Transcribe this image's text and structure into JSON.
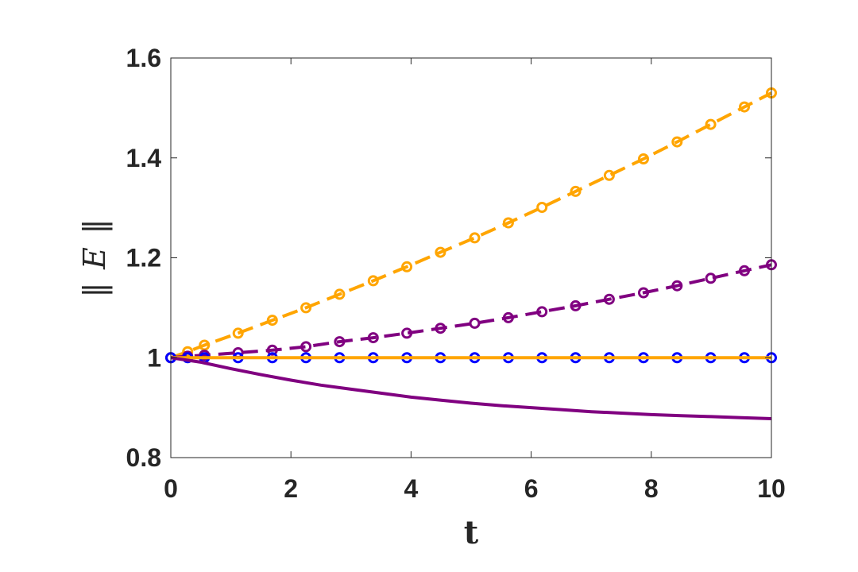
{
  "chart_data": {
    "type": "line",
    "xlabel": "t",
    "ylabel": "E",
    "ylabel_full": "||E||",
    "xlim": [
      0,
      10
    ],
    "ylim": [
      0.8,
      1.6
    ],
    "xticks": [
      0,
      2,
      4,
      6,
      8,
      10
    ],
    "xtick_labels": [
      "0",
      "2",
      "4",
      "6",
      "8",
      "10"
    ],
    "yticks": [
      0.8,
      1.0,
      1.2,
      1.4,
      1.6
    ],
    "ytick_labels": [
      "0.8",
      "1",
      "1.2",
      "1.4",
      "1.6"
    ],
    "grid": false,
    "series": [
      {
        "color": "#FFA500",
        "style": "dashed",
        "marker": "circle",
        "x": [
          0.0,
          0.28,
          0.56,
          1.12,
          1.69,
          2.25,
          2.81,
          3.37,
          3.93,
          4.49,
          5.06,
          5.62,
          6.18,
          6.74,
          7.3,
          7.87,
          8.43,
          8.99,
          9.55,
          10.0
        ],
        "y": [
          1.0,
          1.012,
          1.025,
          1.049,
          1.075,
          1.1,
          1.127,
          1.154,
          1.182,
          1.211,
          1.24,
          1.27,
          1.301,
          1.333,
          1.365,
          1.398,
          1.432,
          1.467,
          1.502,
          1.53
        ]
      },
      {
        "color": "#800080",
        "style": "dashed",
        "marker": "circle",
        "x": [
          0.0,
          0.28,
          0.56,
          1.12,
          1.69,
          2.25,
          2.81,
          3.37,
          3.93,
          4.49,
          5.06,
          5.62,
          6.18,
          6.74,
          7.3,
          7.87,
          8.43,
          8.99,
          9.55,
          10.0
        ],
        "y": [
          1.0,
          1.003,
          1.005,
          1.01,
          1.015,
          1.022,
          1.032,
          1.04,
          1.049,
          1.059,
          1.069,
          1.08,
          1.092,
          1.104,
          1.117,
          1.13,
          1.144,
          1.159,
          1.174,
          1.186
        ]
      },
      {
        "color": "#0000FF",
        "style": "none",
        "marker": "circle",
        "x": [
          0.0,
          0.28,
          0.56,
          1.12,
          1.69,
          2.25,
          2.81,
          3.37,
          3.93,
          4.49,
          5.06,
          5.62,
          6.18,
          6.74,
          7.3,
          7.87,
          8.43,
          8.99,
          9.55,
          10.0
        ],
        "y": [
          1.0,
          1.0,
          1.0,
          1.0,
          1.0,
          1.0,
          1.0,
          1.0,
          1.0,
          1.0,
          1.0,
          1.0,
          1.0,
          1.0,
          1.0,
          1.0,
          1.0,
          1.0,
          1.0,
          1.0
        ]
      },
      {
        "color": "#FFA500",
        "style": "solid",
        "marker": "none",
        "x": [
          0.0,
          10.0
        ],
        "y": [
          1.0,
          1.0
        ]
      },
      {
        "color": "#800080",
        "style": "solid",
        "marker": "none",
        "x": [
          0,
          0.5,
          1,
          1.5,
          2,
          2.5,
          3,
          3.5,
          4,
          4.5,
          5,
          5.5,
          6,
          6.5,
          7,
          7.5,
          8,
          8.5,
          9,
          9.5,
          10
        ],
        "y": [
          1.0,
          0.991,
          0.978,
          0.966,
          0.955,
          0.945,
          0.937,
          0.929,
          0.921,
          0.915,
          0.909,
          0.904,
          0.9,
          0.896,
          0.892,
          0.889,
          0.886,
          0.884,
          0.882,
          0.88,
          0.878
        ]
      }
    ]
  }
}
